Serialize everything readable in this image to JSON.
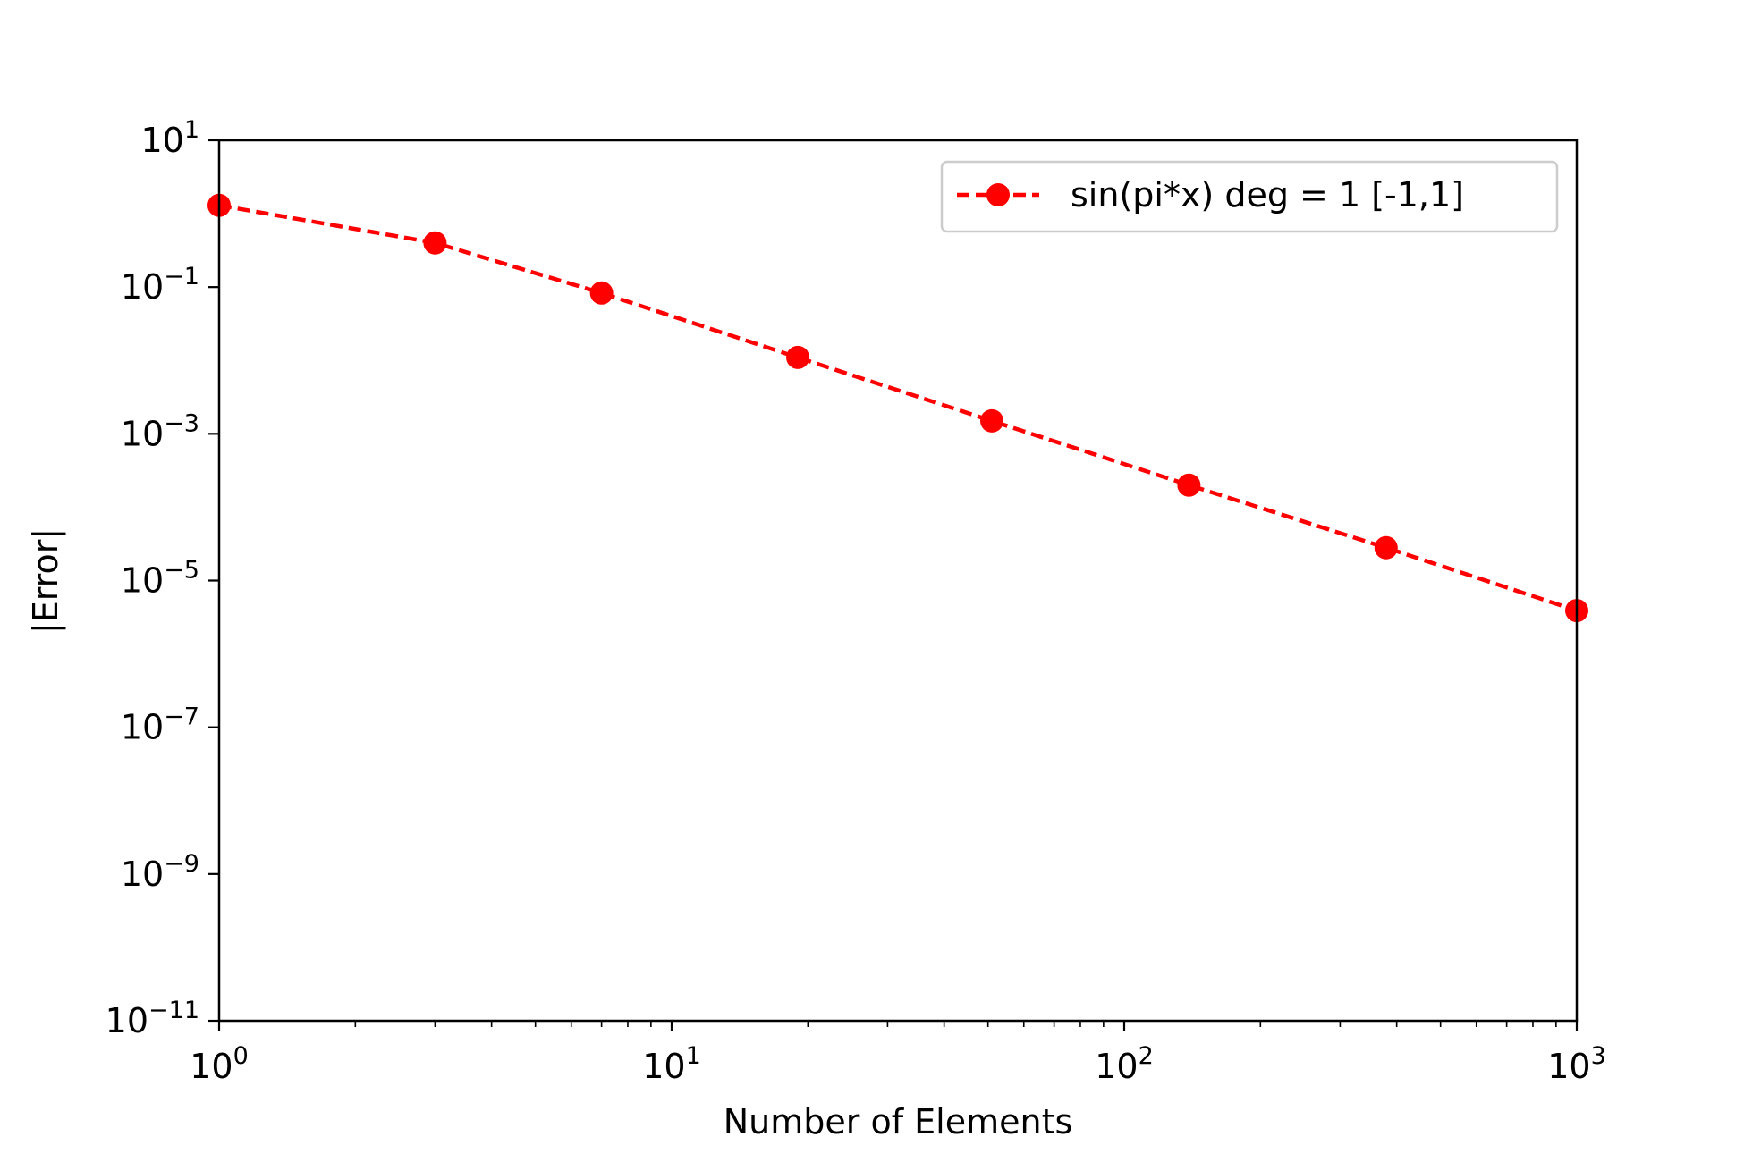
{
  "chart_data": {
    "type": "line",
    "xscale": "log",
    "yscale": "log",
    "xlabel": "Number of Elements",
    "ylabel": "|Error|",
    "xlim": [
      1,
      1000
    ],
    "ylim": [
      1e-11,
      10
    ],
    "x_ticks": [
      {
        "value": 1,
        "base": "10",
        "exp": "0"
      },
      {
        "value": 10,
        "base": "10",
        "exp": "1"
      },
      {
        "value": 100,
        "base": "10",
        "exp": "2"
      },
      {
        "value": 1000,
        "base": "10",
        "exp": "3"
      }
    ],
    "y_ticks": [
      {
        "value": 10,
        "base": "10",
        "exp": "1"
      },
      {
        "value": 0.1,
        "base": "10",
        "exp": "−1"
      },
      {
        "value": 0.001,
        "base": "10",
        "exp": "−3"
      },
      {
        "value": 1e-05,
        "base": "10",
        "exp": "−5"
      },
      {
        "value": 1e-07,
        "base": "10",
        "exp": "−7"
      },
      {
        "value": 1e-09,
        "base": "10",
        "exp": "−9"
      },
      {
        "value": 1e-11,
        "base": "10",
        "exp": "−11"
      }
    ],
    "grid": false,
    "legend_position": "top-right",
    "series": [
      {
        "name": "sin(pi*x) deg = 1 [-1,1]",
        "color": "#ff0000",
        "line_style": "dashed",
        "marker": "circle",
        "x": [
          1,
          3,
          7,
          19,
          51,
          139,
          379,
          1000
        ],
        "y": [
          1.3,
          0.4,
          0.083,
          0.011,
          0.0015,
          0.0002,
          2.8e-05,
          3.9e-06
        ]
      }
    ]
  }
}
